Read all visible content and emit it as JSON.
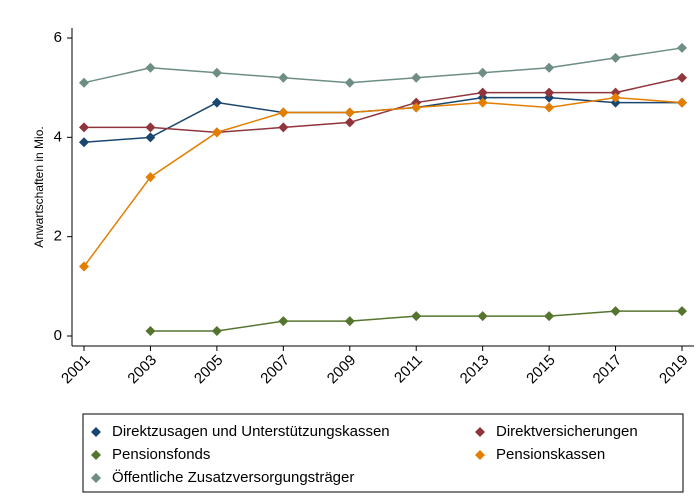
{
  "chart_data": {
    "type": "line",
    "y_label": "Anwartschaften in Mio.",
    "x": [
      2001,
      2003,
      2005,
      2007,
      2009,
      2011,
      2013,
      2015,
      2017,
      2019
    ],
    "xlim": [
      2001,
      2019
    ],
    "xticks": [
      2001,
      2003,
      2005,
      2007,
      2009,
      2011,
      2013,
      2015,
      2017,
      2019
    ],
    "ylim": [
      0,
      6
    ],
    "yticks": [
      0,
      2,
      4,
      6
    ],
    "grid": false,
    "legend_position": "bottom",
    "series": [
      {
        "name": "Direktzusagen und Unterstützungskassen",
        "color": "#1a476f",
        "values": [
          3.9,
          4.0,
          4.7,
          4.5,
          4.5,
          4.6,
          4.8,
          4.8,
          4.7,
          4.7
        ]
      },
      {
        "name": "Direktversicherungen",
        "color": "#90353b",
        "values": [
          4.2,
          4.2,
          4.1,
          4.2,
          4.3,
          4.7,
          4.9,
          4.9,
          4.9,
          5.2
        ]
      },
      {
        "name": "Pensionsfonds",
        "color": "#55752f",
        "values": [
          null,
          0.1,
          0.1,
          0.3,
          0.3,
          0.4,
          0.4,
          0.4,
          0.5,
          0.5
        ]
      },
      {
        "name": "Pensionskassen",
        "color": "#e37e00",
        "values": [
          1.4,
          3.2,
          4.1,
          4.5,
          4.5,
          4.6,
          4.7,
          4.6,
          4.8,
          4.7
        ]
      },
      {
        "name": "Öffentliche Zusatzversorgungsträger",
        "color": "#6e8e84",
        "values": [
          5.1,
          5.4,
          5.3,
          5.2,
          5.1,
          5.2,
          5.3,
          5.4,
          5.6,
          5.8
        ]
      }
    ]
  }
}
